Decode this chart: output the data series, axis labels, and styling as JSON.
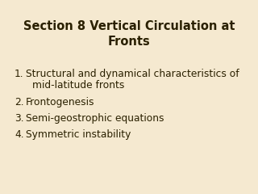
{
  "title_line1": "Section 8 Vertical Circulation at",
  "title_line2": "Fronts",
  "items": [
    [
      "Structural and dynamical characteristics of",
      "mid-latitude fronts"
    ],
    [
      "Frontogenesis"
    ],
    [
      "Semi-geostrophic equations"
    ],
    [
      "Symmetric instability"
    ]
  ],
  "background_color": "#f5e9d0",
  "title_color": "#2a2000",
  "text_color": "#2a2000",
  "title_fontsize": 10.5,
  "body_fontsize": 8.8
}
